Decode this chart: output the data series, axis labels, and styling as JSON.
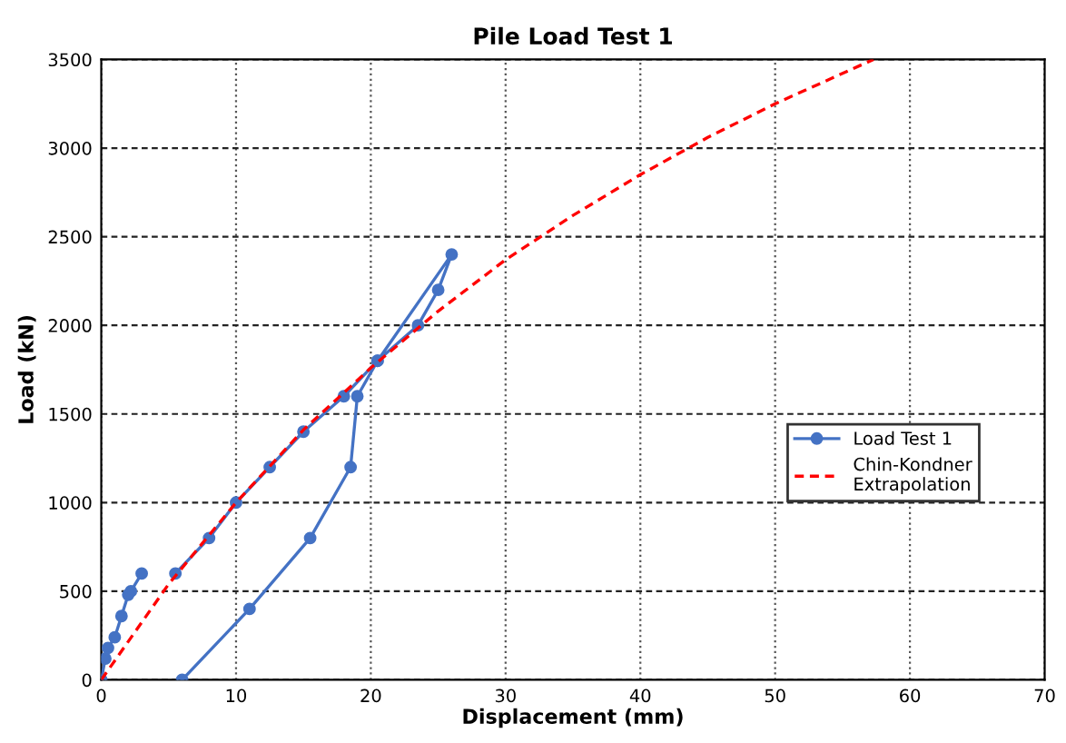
{
  "chart_data": {
    "type": "line",
    "title": "Pile Load Test 1",
    "xlabel": "Displacement (mm)",
    "ylabel": "Load (kN)",
    "xlim": [
      0,
      70
    ],
    "xticks": [
      0,
      10,
      20,
      30,
      40,
      50,
      60,
      70
    ],
    "ylim": [
      0,
      3500
    ],
    "yticks": [
      0,
      500,
      1000,
      1500,
      2000,
      2500,
      3000,
      3500
    ],
    "grid": true,
    "legend": "right",
    "series": [
      {
        "name": "Load Test 1",
        "color": "#4472c4",
        "marker": "circle",
        "line_style": "solid",
        "x": [
          0,
          0.3,
          0.5,
          1,
          1.5,
          2,
          2.2,
          3,
          null,
          5.5,
          8,
          10,
          12.5,
          15,
          18,
          20.5,
          23.5,
          25,
          26,
          20.5,
          19,
          18.5,
          15.5,
          11,
          6
        ],
        "values": [
          0,
          120,
          180,
          240,
          360,
          480,
          500,
          600,
          null,
          600,
          800,
          1000,
          1200,
          1400,
          1600,
          1800,
          2000,
          2200,
          2400,
          1800,
          1600,
          1200,
          800,
          400,
          0
        ]
      },
      {
        "name": "Chin-Kondner\nExtrapolation",
        "color": "#ff0000",
        "marker": "none",
        "line_style": "dashed",
        "x": [
          0,
          5,
          10,
          15,
          20,
          25,
          30,
          35,
          40,
          45,
          50,
          57.3
        ],
        "values": [
          0,
          540,
          1000,
          1410,
          1760,
          2080,
          2370,
          2620,
          2850,
          3060,
          3250,
          3500
        ]
      }
    ]
  }
}
